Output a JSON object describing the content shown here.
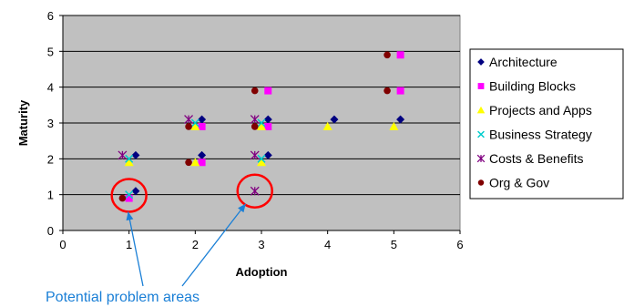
{
  "chart_data": {
    "type": "scatter",
    "title": "",
    "xlabel": "Adoption",
    "ylabel": "Maturity",
    "xlim": [
      0,
      6
    ],
    "ylim": [
      0,
      6
    ],
    "x_ticks": [
      "0",
      "1",
      "2",
      "3",
      "4",
      "5",
      "6"
    ],
    "y_ticks": [
      "0",
      "1",
      "2",
      "3",
      "4",
      "5",
      "6"
    ],
    "grid": true,
    "plot_background": "#c0c0c0",
    "legend_position": "right",
    "series": [
      {
        "name": "Architecture",
        "marker": "diamond",
        "color": "#000080",
        "points": [
          [
            1.1,
            1.1
          ],
          [
            1.1,
            2.1
          ],
          [
            2.1,
            2.1
          ],
          [
            2.1,
            3.1
          ],
          [
            3.1,
            2.1
          ],
          [
            3.1,
            3.1
          ],
          [
            4.1,
            3.1
          ],
          [
            5.1,
            3.1
          ]
        ]
      },
      {
        "name": "Building Blocks",
        "marker": "square",
        "color": "#ff00ff",
        "points": [
          [
            1.0,
            0.9
          ],
          [
            2.1,
            1.9
          ],
          [
            2.1,
            2.9
          ],
          [
            3.1,
            2.9
          ],
          [
            3.1,
            3.9
          ],
          [
            5.1,
            3.9
          ],
          [
            5.1,
            4.9
          ]
        ]
      },
      {
        "name": "Projects and Apps",
        "marker": "triangle",
        "color": "#ffff00",
        "points": [
          [
            1.0,
            1.9
          ],
          [
            2.0,
            1.9
          ],
          [
            2.0,
            2.9
          ],
          [
            3.0,
            1.9
          ],
          [
            3.0,
            2.9
          ],
          [
            4.0,
            2.9
          ],
          [
            5.0,
            2.9
          ]
        ]
      },
      {
        "name": "Business Strategy",
        "marker": "x",
        "color": "#00cccc",
        "points": [
          [
            1.0,
            1.0
          ],
          [
            1.0,
            2.0
          ],
          [
            2.0,
            3.0
          ],
          [
            3.0,
            3.0
          ],
          [
            3.0,
            2.0
          ]
        ]
      },
      {
        "name": "Costs & Benefits",
        "marker": "asterisk",
        "color": "#800080",
        "points": [
          [
            0.9,
            2.1
          ],
          [
            1.9,
            3.1
          ],
          [
            2.9,
            3.1
          ],
          [
            2.9,
            2.1
          ],
          [
            2.9,
            1.1
          ]
        ]
      },
      {
        "name": "Org & Gov",
        "marker": "circle",
        "color": "#800000",
        "points": [
          [
            0.9,
            0.9
          ],
          [
            1.9,
            1.9
          ],
          [
            1.9,
            2.9
          ],
          [
            2.9,
            2.9
          ],
          [
            2.9,
            3.9
          ],
          [
            4.9,
            3.9
          ],
          [
            4.9,
            4.9
          ]
        ]
      }
    ],
    "highlights": [
      {
        "x": 1.0,
        "y": 0.98,
        "color": "#ff0000"
      },
      {
        "x": 2.9,
        "y": 1.1,
        "color": "#ff0000"
      }
    ],
    "annotation": {
      "text": "Potential problem areas",
      "color": "#1a7fd6"
    }
  }
}
